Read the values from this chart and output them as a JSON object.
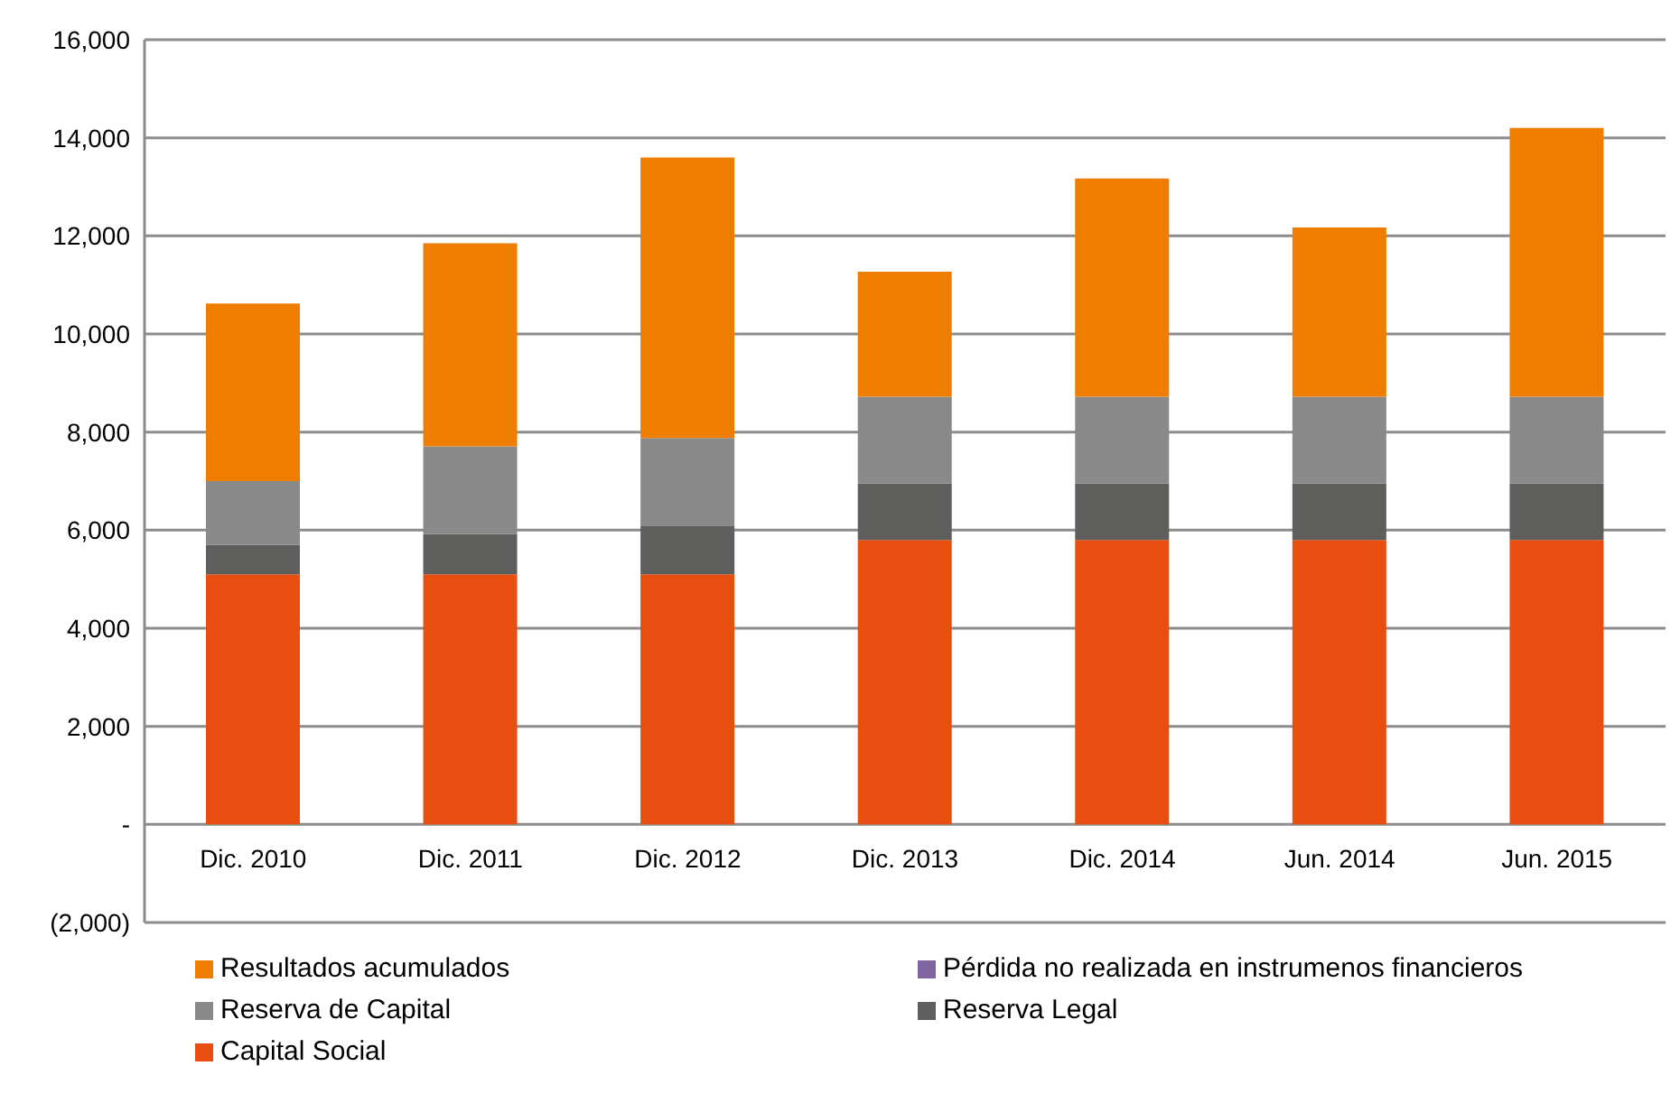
{
  "chart_data": {
    "type": "bar",
    "stacked": true,
    "categories": [
      "Dic. 2010",
      "Dic. 2011",
      "Dic. 2012",
      "Dic. 2013",
      "Dic. 2014",
      "Jun. 2014",
      "Jun. 2015"
    ],
    "series": [
      {
        "name": "Capital Social",
        "color": "#e84e0f",
        "values": [
          5100,
          5100,
          5100,
          5800,
          5800,
          5800,
          5800
        ]
      },
      {
        "name": "Reserva Legal",
        "color": "#5e5e5c",
        "values": [
          600,
          820,
          980,
          1150,
          1150,
          1150,
          1150
        ]
      },
      {
        "name": "Reserva de Capital",
        "color": "#898989",
        "values": [
          1300,
          1790,
          1800,
          1770,
          1770,
          1770,
          1770
        ]
      },
      {
        "name": "Pérdida no realizada en instrumenos financieros",
        "color": "#8064a2",
        "values": [
          null,
          null,
          null,
          null,
          null,
          null,
          null
        ]
      },
      {
        "name": "Resultados acumulados",
        "color": "#ef7d00",
        "values": [
          3620,
          4140,
          5720,
          2550,
          4450,
          3450,
          5480
        ]
      }
    ],
    "ylim": [
      -2000,
      16000
    ],
    "yticks": [
      {
        "value": -2000,
        "label": "(2,000)"
      },
      {
        "value": 0,
        "label": "-"
      },
      {
        "value": 2000,
        "label": "2,000"
      },
      {
        "value": 4000,
        "label": "4,000"
      },
      {
        "value": 6000,
        "label": "6,000"
      },
      {
        "value": 8000,
        "label": "8,000"
      },
      {
        "value": 10000,
        "label": "10,000"
      },
      {
        "value": 12000,
        "label": "12,000"
      },
      {
        "value": 14000,
        "label": "14,000"
      },
      {
        "value": 16000,
        "label": "16,000"
      }
    ],
    "grid": "y",
    "legend": "bottom"
  }
}
